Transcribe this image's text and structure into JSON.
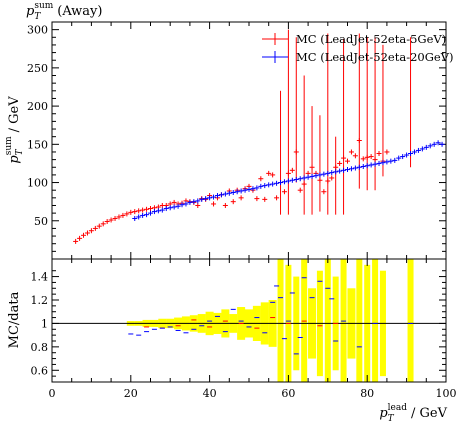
{
  "chart_data": [
    {
      "type": "scatter",
      "title_base": "p",
      "title_sub": "T",
      "title_sup": "sum",
      "title_suffix": "(Away)",
      "ylabel_base": "p",
      "ylabel_sub": "T",
      "ylabel_sup": "sum",
      "ylabel_suffix": "/ GeV",
      "xlim": [
        0,
        100
      ],
      "ylim": [
        0,
        310
      ],
      "yticks": [
        50,
        100,
        150,
        200,
        250,
        300
      ],
      "legend_position": "top-right",
      "series": [
        {
          "name": "MC (LeadJet-52eta-5GeV)",
          "color": "#ff0000",
          "points": [
            [
              6,
              23
            ],
            [
              7,
              27
            ],
            [
              8,
              31
            ],
            [
              9,
              34
            ],
            [
              10,
              37
            ],
            [
              11,
              40
            ],
            [
              12,
              43
            ],
            [
              13,
              46
            ],
            [
              14,
              49
            ],
            [
              15,
              51
            ],
            [
              16,
              53
            ],
            [
              17,
              55
            ],
            [
              18,
              57
            ],
            [
              19,
              59
            ],
            [
              20,
              61
            ],
            [
              21,
              62
            ],
            [
              22,
              63
            ],
            [
              23,
              64
            ],
            [
              24,
              65
            ],
            [
              25,
              66
            ],
            [
              26,
              67
            ],
            [
              27,
              68
            ],
            [
              28,
              70
            ],
            [
              29,
              70
            ],
            [
              30,
              72
            ],
            [
              31,
              74
            ],
            [
              32,
              72
            ],
            [
              33,
              73
            ],
            [
              34,
              76
            ],
            [
              35,
              75
            ],
            [
              36,
              74
            ],
            [
              37,
              70
            ],
            [
              38,
              79
            ],
            [
              39,
              78
            ],
            [
              40,
              83
            ],
            [
              41,
              72
            ],
            [
              42,
              80
            ],
            [
              43,
              84
            ],
            [
              44,
              70
            ],
            [
              45,
              89
            ],
            [
              46,
              75
            ],
            [
              47,
              90
            ],
            [
              48,
              80
            ],
            [
              49,
              92
            ],
            [
              50,
              95
            ],
            [
              51,
              90
            ],
            [
              52,
              79
            ],
            [
              53,
              105
            ],
            [
              54,
              78
            ],
            [
              55,
              112
            ],
            [
              56,
              110
            ],
            [
              57,
              80
            ],
            [
              58,
              100
            ],
            [
              59,
              88
            ],
            [
              60,
              112
            ],
            [
              61,
              116
            ],
            [
              62,
              140
            ],
            [
              63,
              90
            ],
            [
              64,
              98
            ],
            [
              65,
              112
            ],
            [
              66,
              120
            ],
            [
              67,
              112
            ],
            [
              68,
              103
            ],
            [
              69,
              88
            ],
            [
              70,
              102
            ],
            [
              71,
              106
            ],
            [
              72,
              120
            ],
            [
              73,
              125
            ],
            [
              74,
              132
            ],
            [
              75,
              128
            ],
            [
              76,
              140
            ],
            [
              77,
              135
            ],
            [
              78,
              155
            ],
            [
              79,
              131
            ],
            [
              80,
              133
            ],
            [
              81,
              134
            ],
            [
              82,
              130
            ],
            [
              83,
              138
            ],
            [
              84,
              128
            ],
            [
              85,
              140
            ]
          ],
          "error_spikes": [
            [
              58,
              58,
              220
            ],
            [
              60,
              58,
              300
            ],
            [
              62,
              100,
              290
            ],
            [
              64,
              58,
              240
            ],
            [
              66,
              58,
              200
            ],
            [
              68,
              62,
              188
            ],
            [
              70,
              58,
              295
            ],
            [
              72,
              58,
              160
            ],
            [
              74,
              58,
              288
            ],
            [
              78,
              92,
              295
            ],
            [
              80,
              90,
              290
            ],
            [
              82,
              90,
              290
            ],
            [
              84,
              108,
              280
            ],
            [
              91,
              120,
              290
            ]
          ]
        },
        {
          "name": "MC (LeadJet-52eta-20GeV)",
          "color": "#0000ff",
          "points": [
            [
              21,
              53
            ],
            [
              22,
              55
            ],
            [
              23,
              57
            ],
            [
              24,
              58
            ],
            [
              25,
              60
            ],
            [
              26,
              62
            ],
            [
              27,
              63
            ],
            [
              28,
              64
            ],
            [
              29,
              66
            ],
            [
              30,
              67
            ],
            [
              31,
              68
            ],
            [
              32,
              69
            ],
            [
              33,
              71
            ],
            [
              34,
              72
            ],
            [
              35,
              74
            ],
            [
              36,
              75
            ],
            [
              37,
              76
            ],
            [
              38,
              78
            ],
            [
              39,
              79
            ],
            [
              40,
              80
            ],
            [
              41,
              81
            ],
            [
              42,
              83
            ],
            [
              43,
              84
            ],
            [
              44,
              85
            ],
            [
              45,
              86
            ],
            [
              46,
              87
            ],
            [
              47,
              88
            ],
            [
              48,
              89
            ],
            [
              49,
              90
            ],
            [
              50,
              91
            ],
            [
              51,
              92
            ],
            [
              52,
              93
            ],
            [
              53,
              95
            ],
            [
              54,
              96
            ],
            [
              55,
              97
            ],
            [
              56,
              98
            ],
            [
              57,
              99
            ],
            [
              58,
              100
            ],
            [
              59,
              101
            ],
            [
              60,
              102
            ],
            [
              61,
              103
            ],
            [
              62,
              104
            ],
            [
              63,
              105
            ],
            [
              64,
              106
            ],
            [
              65,
              107
            ],
            [
              66,
              108
            ],
            [
              67,
              109
            ],
            [
              68,
              110
            ],
            [
              69,
              111
            ],
            [
              70,
              112
            ],
            [
              71,
              113
            ],
            [
              72,
              114
            ],
            [
              73,
              115
            ],
            [
              74,
              116
            ],
            [
              75,
              117
            ],
            [
              76,
              118
            ],
            [
              77,
              119
            ],
            [
              78,
              120
            ],
            [
              79,
              121
            ],
            [
              80,
              122
            ],
            [
              81,
              123
            ],
            [
              82,
              124
            ],
            [
              83,
              125
            ],
            [
              84,
              126
            ],
            [
              85,
              127
            ],
            [
              86,
              128
            ],
            [
              87,
              129
            ],
            [
              88,
              132
            ],
            [
              89,
              134
            ],
            [
              90,
              136
            ],
            [
              91,
              138
            ],
            [
              92,
              140
            ],
            [
              93,
              142
            ],
            [
              94,
              144
            ],
            [
              95,
              146
            ],
            [
              96,
              148
            ],
            [
              97,
              150
            ],
            [
              98,
              152
            ],
            [
              99,
              150
            ]
          ]
        }
      ]
    },
    {
      "type": "scatter",
      "ylabel": "MC/data",
      "xlabel_base": "p",
      "xlabel_sub": "T",
      "xlabel_sup": "lead",
      "xlabel_suffix": "/ GeV",
      "xlim": [
        0,
        100
      ],
      "ylim": [
        0.5,
        1.55
      ],
      "xticks": [
        0,
        20,
        40,
        60,
        80,
        100
      ],
      "yticks": [
        0.6,
        0.8,
        1,
        1.2,
        1.4
      ],
      "reference_line": 1,
      "band_color": "#ffff00",
      "band": [
        [
          20,
          0.02
        ],
        [
          22,
          0.02
        ],
        [
          24,
          0.03
        ],
        [
          26,
          0.03
        ],
        [
          28,
          0.04
        ],
        [
          30,
          0.04
        ],
        [
          32,
          0.05
        ],
        [
          34,
          0.06
        ],
        [
          36,
          0.07
        ],
        [
          38,
          0.08
        ],
        [
          40,
          0.1
        ],
        [
          42,
          0.09
        ],
        [
          44,
          0.12
        ],
        [
          46,
          0.08
        ],
        [
          48,
          0.14
        ],
        [
          50,
          0.12
        ],
        [
          52,
          0.15
        ],
        [
          54,
          0.18
        ],
        [
          56,
          0.2
        ],
        [
          58,
          0.55
        ],
        [
          60,
          0.5
        ],
        [
          62,
          0.4
        ],
        [
          64,
          0.55
        ],
        [
          66,
          0.3
        ],
        [
          68,
          0.45
        ],
        [
          70,
          0.55
        ],
        [
          72,
          0.4
        ],
        [
          74,
          0.55
        ],
        [
          76,
          0.3
        ],
        [
          78,
          0.55
        ],
        [
          80,
          0.5
        ],
        [
          82,
          0.55
        ],
        [
          84,
          0.45
        ],
        [
          91,
          0.55
        ]
      ],
      "series": [
        {
          "name": "MC (LeadJet-52eta-5GeV)",
          "color": "#ff0000",
          "points": [
            [
              24,
              0.97
            ],
            [
              28,
              0.96
            ],
            [
              32,
              0.98
            ],
            [
              36,
              1.03
            ],
            [
              40,
              0.97
            ],
            [
              44,
              1.02
            ],
            [
              48,
              1.0
            ],
            [
              52,
              0.96
            ],
            [
              56,
              1.05
            ],
            [
              60,
              1.0
            ],
            [
              64,
              1.02
            ],
            [
              68,
              0.98
            ],
            [
              72,
              1.0
            ]
          ]
        },
        {
          "name": "MC (LeadJet-52eta-20GeV)",
          "color": "#0000ff",
          "points": [
            [
              20,
              0.91
            ],
            [
              22,
              0.9
            ],
            [
              24,
              0.93
            ],
            [
              26,
              0.95
            ],
            [
              28,
              0.96
            ],
            [
              30,
              0.97
            ],
            [
              32,
              0.94
            ],
            [
              34,
              0.92
            ],
            [
              36,
              0.95
            ],
            [
              38,
              0.98
            ],
            [
              40,
              1.02
            ],
            [
              42,
              1.06
            ],
            [
              44,
              0.93
            ],
            [
              46,
              1.12
            ],
            [
              48,
              1.02
            ],
            [
              50,
              0.97
            ],
            [
              52,
              1.05
            ],
            [
              54,
              0.92
            ],
            [
              56,
              1.18
            ],
            [
              57,
              1.32
            ],
            [
              58,
              1.22
            ],
            [
              59,
              0.87
            ],
            [
              60,
              1.02
            ],
            [
              61,
              1.26
            ],
            [
              62,
              0.74
            ],
            [
              63,
              0.88
            ],
            [
              64,
              1.39
            ],
            [
              66,
              1.22
            ],
            [
              68,
              1.36
            ],
            [
              70,
              1.3
            ],
            [
              71,
              1.21
            ],
            [
              72,
              0.85
            ],
            [
              74,
              1.02
            ],
            [
              78,
              0.8
            ],
            [
              82,
              1.0
            ],
            [
              91,
              1.0
            ]
          ]
        }
      ]
    }
  ]
}
